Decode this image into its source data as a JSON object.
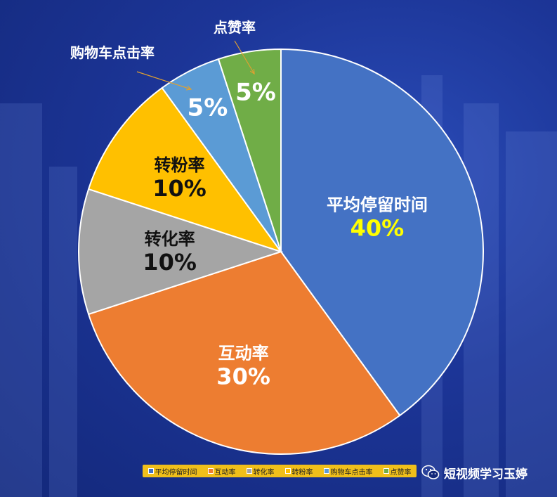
{
  "chart_data": {
    "type": "pie",
    "slices": [
      {
        "label": "平均停留时间",
        "value": 40,
        "percent_label": "40%",
        "color": "#4472c4",
        "label_color": "#ffffff",
        "value_color": "#ffff00"
      },
      {
        "label": "互动率",
        "value": 30,
        "percent_label": "30%",
        "color": "#ed7d31",
        "label_color": "#ffffff",
        "value_color": "#ffffff"
      },
      {
        "label": "转化率",
        "value": 10,
        "percent_label": "10%",
        "color": "#a5a5a5",
        "label_color": "#111111",
        "value_color": "#111111"
      },
      {
        "label": "转粉率",
        "value": 10,
        "percent_label": "10%",
        "color": "#ffc000",
        "label_color": "#111111",
        "value_color": "#111111"
      },
      {
        "label": "购物车点击率",
        "value": 5,
        "percent_label": "5%",
        "color": "#5b9bd5",
        "label_color": "#ffffff",
        "value_color": "#ffffff"
      },
      {
        "label": "点赞率",
        "value": 5,
        "percent_label": "5%",
        "color": "#70ad47",
        "label_color": "#ffffff",
        "value_color": "#ffffff"
      }
    ],
    "start": "top, clockwise",
    "legend": "bottom"
  },
  "watermark": {
    "icon": "wechat-icon",
    "text": "短视频学习玉婷"
  }
}
